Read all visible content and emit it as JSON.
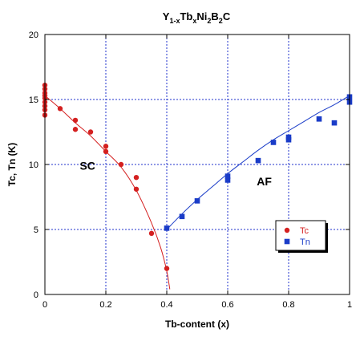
{
  "chart_data": {
    "type": "scatter",
    "title": {
      "parts": [
        {
          "text": "Y",
          "sub": false
        },
        {
          "text": "1-x",
          "sub": true
        },
        {
          "text": "Tb",
          "sub": false
        },
        {
          "text": "x",
          "sub": true
        },
        {
          "text": "Ni",
          "sub": false
        },
        {
          "text": "2",
          "sub": true
        },
        {
          "text": "B",
          "sub": false
        },
        {
          "text": "2",
          "sub": true
        },
        {
          "text": "C",
          "sub": false
        }
      ]
    },
    "xlabel": "Tb-content (x)",
    "ylabel": "Tc, Tn (K)",
    "xlim": [
      0,
      1
    ],
    "ylim": [
      0,
      20
    ],
    "xticks": [
      0,
      0.2,
      0.4,
      0.6,
      0.8,
      1
    ],
    "xtick_labels": [
      "0",
      "0.2",
      "0.4",
      "0.6",
      "0.8",
      "1"
    ],
    "yticks": [
      0,
      5,
      10,
      15,
      20
    ],
    "ytick_labels": [
      "0",
      "5",
      "10",
      "15",
      "20"
    ],
    "grid": true,
    "legend_position": "lower-right",
    "annotations": [
      {
        "text": "SC",
        "x": 0.14,
        "y": 9.6
      },
      {
        "text": "AF",
        "x": 0.72,
        "y": 8.4
      }
    ],
    "series": [
      {
        "name": "Tc",
        "color": "#d42020",
        "marker": "circle",
        "points": [
          [
            0,
            16.1
          ],
          [
            0,
            15.8
          ],
          [
            0,
            15.5
          ],
          [
            0,
            15.3
          ],
          [
            0,
            15.1
          ],
          [
            0,
            14.8
          ],
          [
            0,
            14.5
          ],
          [
            0,
            14.2
          ],
          [
            0,
            13.8
          ],
          [
            0.05,
            14.3
          ],
          [
            0.1,
            13.4
          ],
          [
            0.1,
            12.7
          ],
          [
            0.15,
            12.5
          ],
          [
            0.2,
            11.4
          ],
          [
            0.2,
            11.0
          ],
          [
            0.25,
            10.0
          ],
          [
            0.3,
            9.0
          ],
          [
            0.3,
            8.1
          ],
          [
            0.35,
            4.7
          ],
          [
            0.4,
            2.0
          ]
        ],
        "fit": [
          [
            0,
            15.3
          ],
          [
            0.05,
            14.3
          ],
          [
            0.1,
            13.2
          ],
          [
            0.15,
            12.2
          ],
          [
            0.2,
            11.0
          ],
          [
            0.25,
            9.8
          ],
          [
            0.3,
            8.0
          ],
          [
            0.35,
            5.5
          ],
          [
            0.38,
            3.6
          ],
          [
            0.4,
            1.8
          ],
          [
            0.41,
            0.4
          ]
        ]
      },
      {
        "name": "Tn",
        "color": "#1a3cc8",
        "marker": "square",
        "points": [
          [
            0.4,
            5.1
          ],
          [
            0.45,
            6.0
          ],
          [
            0.5,
            7.2
          ],
          [
            0.6,
            9.1
          ],
          [
            0.6,
            8.8
          ],
          [
            0.7,
            10.3
          ],
          [
            0.75,
            11.7
          ],
          [
            0.8,
            12.1
          ],
          [
            0.8,
            11.9
          ],
          [
            0.9,
            13.5
          ],
          [
            0.95,
            13.2
          ],
          [
            1,
            15.2
          ],
          [
            1,
            14.8
          ]
        ],
        "fit": [
          [
            0.4,
            5.0
          ],
          [
            0.45,
            6.2
          ],
          [
            0.5,
            7.3
          ],
          [
            0.55,
            8.3
          ],
          [
            0.6,
            9.3
          ],
          [
            0.65,
            10.2
          ],
          [
            0.7,
            11.1
          ],
          [
            0.75,
            11.9
          ],
          [
            0.8,
            12.6
          ],
          [
            0.85,
            13.3
          ],
          [
            0.9,
            14.0
          ],
          [
            0.95,
            14.6
          ],
          [
            1,
            15.3
          ]
        ]
      }
    ]
  }
}
